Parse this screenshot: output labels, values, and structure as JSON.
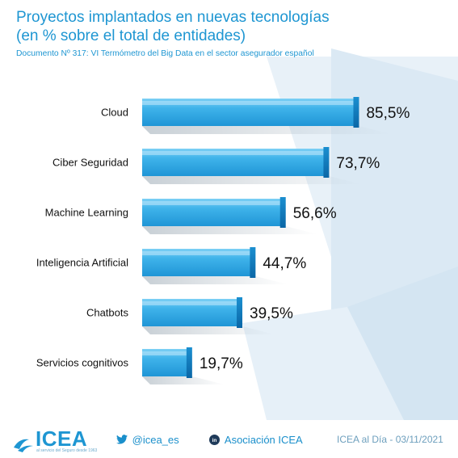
{
  "header": {
    "title_line1": "Proyectos implantados en nuevas tecnologías",
    "title_line2": "(en % sobre el total de entidades)",
    "subtitle": "Documento Nº 317: VI Termómetro del Big Data en el sector asegurador español"
  },
  "chart_data": {
    "type": "bar",
    "orientation": "horizontal",
    "categories": [
      "Cloud",
      "Ciber Seguridad",
      "Machine Learning",
      "Inteligencia Artificial",
      "Chatbots",
      "Servicios cognitivos"
    ],
    "values": [
      85.5,
      73.7,
      56.6,
      44.7,
      39.5,
      19.7
    ],
    "value_labels": [
      "85,5%",
      "73,7%",
      "56,6%",
      "44,7%",
      "39,5%",
      "19,7%"
    ],
    "xlim": [
      0,
      100
    ],
    "grid": false,
    "legend": "none",
    "bar_color": "#27a6e4",
    "bar_color_dark": "#0a6fae"
  },
  "footer": {
    "logo_text": "ICEA",
    "logo_tagline": "al servicio del Seguro desde 1963",
    "twitter_handle": "@icea_es",
    "linkedin_name": "Asociación ICEA",
    "date_text": "ICEA al Día - 03/11/2021",
    "twitter_icon": "twitter-bird-icon",
    "linkedin_icon": "linkedin-icon",
    "logo_icon": "icea-wave-icon"
  },
  "colors": {
    "brand_blue": "#1e96d2",
    "background_shape": "#e3eef7"
  }
}
